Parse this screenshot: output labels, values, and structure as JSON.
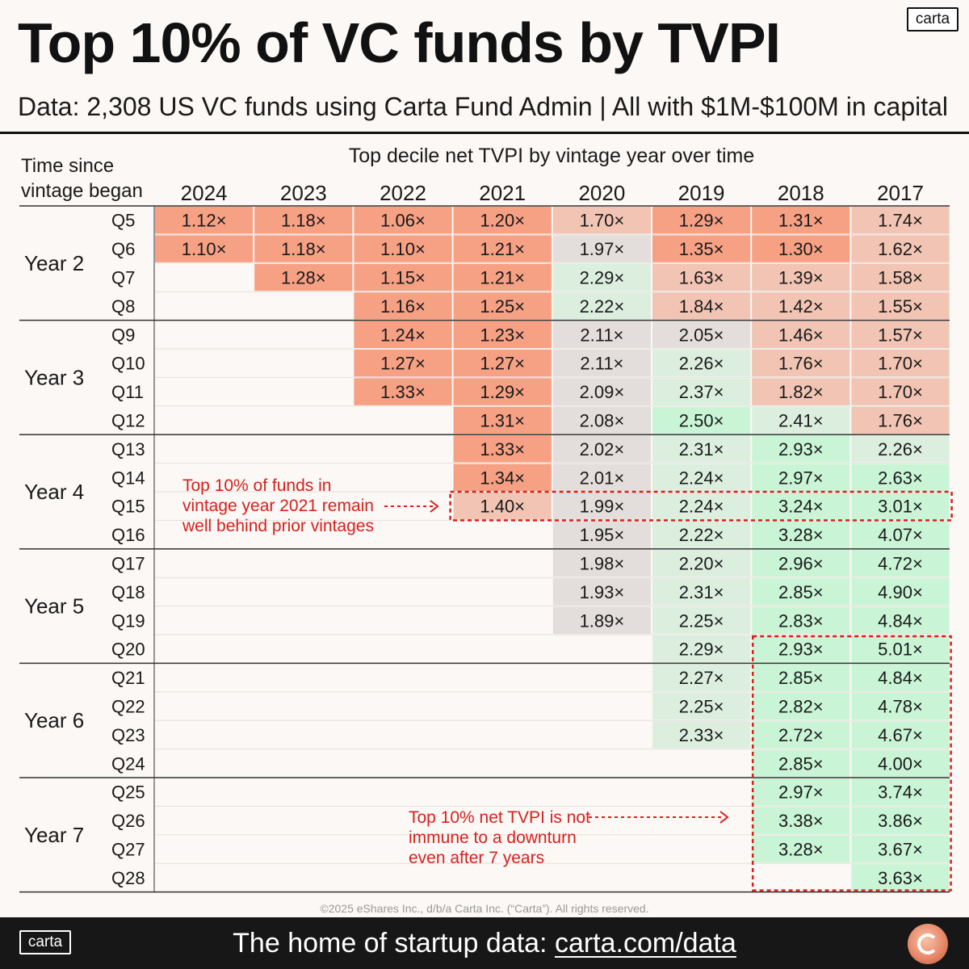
{
  "header": {
    "title": "Top 10% of VC funds by TVPI",
    "logo": "carta",
    "subtitle": "Data: 2,308 US VC funds using Carta Fund Admin | All with $1M-$100M in capital"
  },
  "footer": {
    "logo": "carta",
    "text_prefix": "The home of startup data: ",
    "url": "carta.com/data",
    "badge_icon": "carta-badge-icon"
  },
  "colors": {
    "red_strong": "#f6a084",
    "red_light": "#f1c4b3",
    "grey": "#e3dedb",
    "green_light": "#dcefdf",
    "green": "#c9f5d6",
    "annotation": "#d9201d"
  },
  "chart_data": {
    "type": "table",
    "title": "Top decile net TVPI by vintage year over time",
    "row_axis_title": [
      "Time since",
      "vintage began"
    ],
    "columns": [
      "2024",
      "2023",
      "2022",
      "2021",
      "2020",
      "2019",
      "2018",
      "2017"
    ],
    "year_groups": [
      {
        "label": "Year 2",
        "quarters": [
          "Q5",
          "Q6",
          "Q7",
          "Q8"
        ]
      },
      {
        "label": "Year 3",
        "quarters": [
          "Q9",
          "Q10",
          "Q11",
          "Q12"
        ]
      },
      {
        "label": "Year 4",
        "quarters": [
          "Q13",
          "Q14",
          "Q15",
          "Q16"
        ]
      },
      {
        "label": "Year 5",
        "quarters": [
          "Q17",
          "Q18",
          "Q19",
          "Q20"
        ]
      },
      {
        "label": "Year 6",
        "quarters": [
          "Q21",
          "Q22",
          "Q23",
          "Q24"
        ]
      },
      {
        "label": "Year 7",
        "quarters": [
          "Q25",
          "Q26",
          "Q27",
          "Q28"
        ]
      }
    ],
    "unit_suffix": "×",
    "rows": [
      [
        1.12,
        1.18,
        1.06,
        1.2,
        1.7,
        1.29,
        1.31,
        1.74
      ],
      [
        1.1,
        1.18,
        1.1,
        1.21,
        1.97,
        1.35,
        1.3,
        1.62
      ],
      [
        null,
        1.28,
        1.15,
        1.21,
        2.29,
        1.63,
        1.39,
        1.58
      ],
      [
        null,
        null,
        1.16,
        1.25,
        2.22,
        1.84,
        1.42,
        1.55
      ],
      [
        null,
        null,
        1.24,
        1.23,
        2.11,
        2.05,
        1.46,
        1.57
      ],
      [
        null,
        null,
        1.27,
        1.27,
        2.11,
        2.26,
        1.76,
        1.7
      ],
      [
        null,
        null,
        1.33,
        1.29,
        2.09,
        2.37,
        1.82,
        1.7
      ],
      [
        null,
        null,
        null,
        1.31,
        2.08,
        2.5,
        2.41,
        1.76
      ],
      [
        null,
        null,
        null,
        1.33,
        2.02,
        2.31,
        2.93,
        2.26
      ],
      [
        null,
        null,
        null,
        1.34,
        2.01,
        2.24,
        2.97,
        2.63
      ],
      [
        null,
        null,
        null,
        1.4,
        1.99,
        2.24,
        3.24,
        3.01
      ],
      [
        null,
        null,
        null,
        null,
        1.95,
        2.22,
        3.28,
        4.07
      ],
      [
        null,
        null,
        null,
        null,
        1.98,
        2.2,
        2.96,
        4.72
      ],
      [
        null,
        null,
        null,
        null,
        1.93,
        2.31,
        2.85,
        4.9
      ],
      [
        null,
        null,
        null,
        null,
        1.89,
        2.25,
        2.83,
        4.84
      ],
      [
        null,
        null,
        null,
        null,
        null,
        2.29,
        2.93,
        5.01
      ],
      [
        null,
        null,
        null,
        null,
        null,
        2.27,
        2.85,
        4.84
      ],
      [
        null,
        null,
        null,
        null,
        null,
        2.25,
        2.82,
        4.78
      ],
      [
        null,
        null,
        null,
        null,
        null,
        2.33,
        2.72,
        4.67
      ],
      [
        null,
        null,
        null,
        null,
        null,
        null,
        2.85,
        4.0
      ],
      [
        null,
        null,
        null,
        null,
        null,
        null,
        2.97,
        3.74
      ],
      [
        null,
        null,
        null,
        null,
        null,
        null,
        3.38,
        3.86
      ],
      [
        null,
        null,
        null,
        null,
        null,
        null,
        3.28,
        3.67
      ],
      [
        null,
        null,
        null,
        null,
        null,
        null,
        null,
        3.63
      ]
    ],
    "annotations": [
      {
        "id": "vintage-2021",
        "lines": [
          "Top 10% of funds in",
          "vintage year 2021 remain",
          "well behind prior vintages"
        ],
        "highlight": "Q15 row, 2021–2017"
      },
      {
        "id": "downturn",
        "lines": [
          "Top 10% net TVPI is not",
          "immune to a downturn",
          "even after 7 years"
        ],
        "highlight": "Q20–Q28, 2018–2017"
      }
    ],
    "copyright": "©2025 eShares Inc., d/b/a Carta Inc. (“Carta”). All rights reserved."
  }
}
